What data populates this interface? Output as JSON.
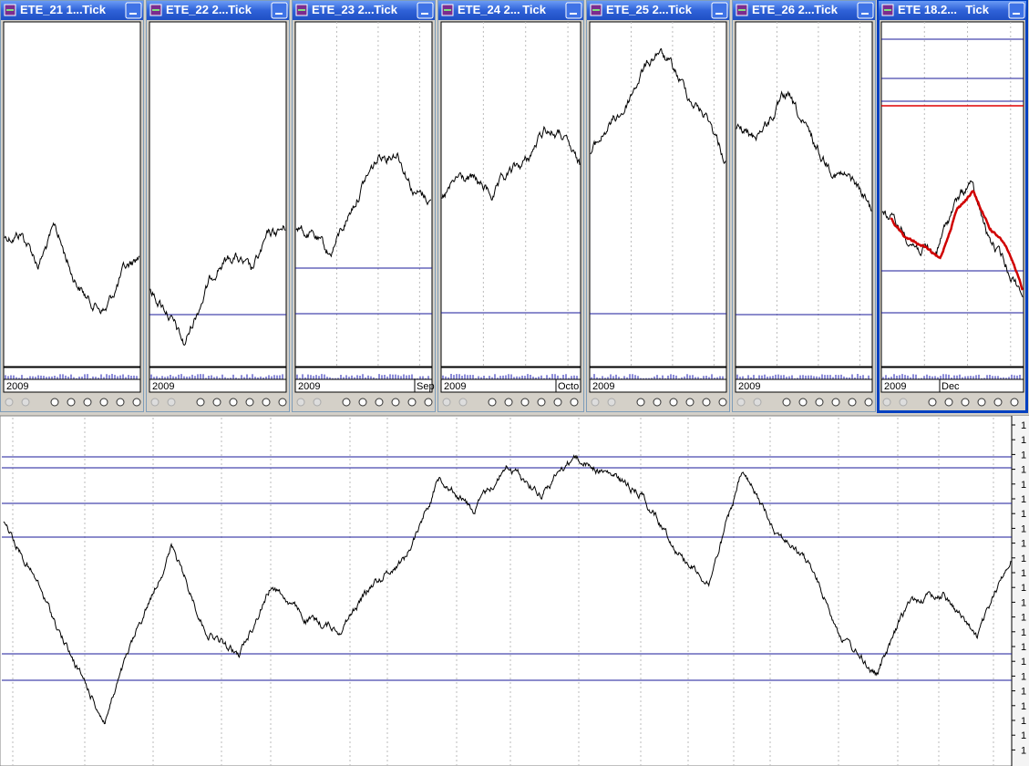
{
  "windows": [
    {
      "title": "ETE_21 1...",
      "mode": "Tick",
      "axis_labels": [
        "2009"
      ]
    },
    {
      "title": "ETE_22 2...",
      "mode": "Tick",
      "axis_labels": [
        "2009"
      ]
    },
    {
      "title": "ETE_23 2...",
      "mode": "Tick",
      "axis_labels": [
        "2009",
        "Sep"
      ]
    },
    {
      "title": "ETE_24 2...",
      "mode": "Tick",
      "axis_labels": [
        "2009",
        "Octo"
      ]
    },
    {
      "title": "ETE_25 2...",
      "mode": "Tick",
      "axis_labels": [
        "2009"
      ]
    },
    {
      "title": "ETE_26 2...",
      "mode": "Tick",
      "axis_labels": [
        "2009"
      ]
    },
    {
      "title": "ETE 18.2...",
      "mode": "Tick",
      "axis_labels": [
        "2009",
        "Dec"
      ]
    }
  ],
  "main_panel": {
    "right_axis_labels": [
      "1",
      "1",
      "1",
      "1",
      "1",
      "1",
      "1",
      "1",
      "1",
      "1",
      "1",
      "1",
      "1",
      "1",
      "1",
      "1",
      "1",
      "1",
      "1",
      "1",
      "1",
      "1",
      "1"
    ]
  }
}
